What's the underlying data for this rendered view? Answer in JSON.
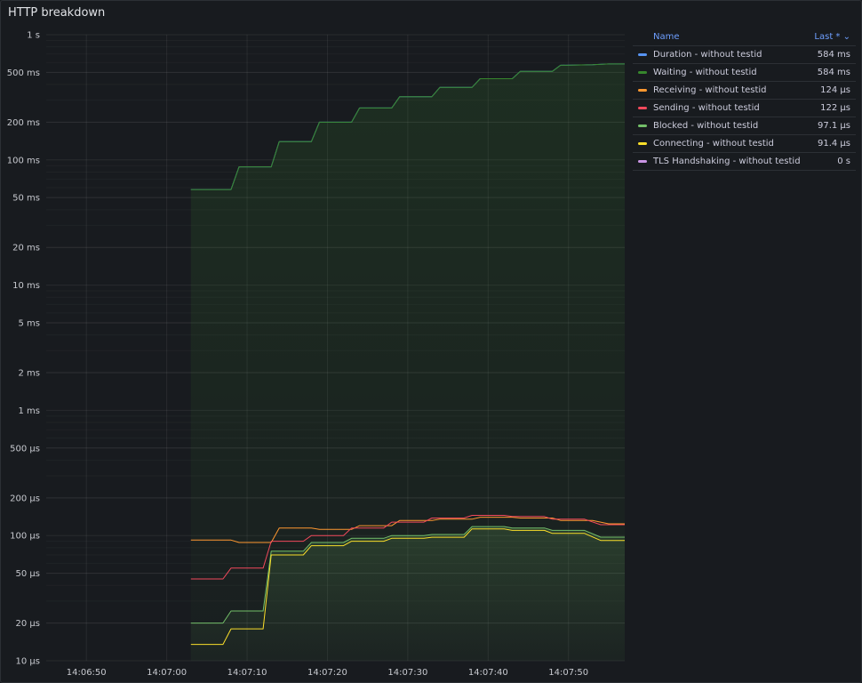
{
  "panel": {
    "title": "HTTP breakdown"
  },
  "legend": {
    "name_header": "Name",
    "value_header": "Last * ⌄",
    "items": [
      {
        "name": "Duration - without testid",
        "value": "584 ms",
        "color": "#5794f2"
      },
      {
        "name": "Waiting - without testid",
        "value": "584 ms",
        "color": "#37872d"
      },
      {
        "name": "Receiving - without testid",
        "value": "124 µs",
        "color": "#ff9830"
      },
      {
        "name": "Sending - without testid",
        "value": "122 µs",
        "color": "#f2495c"
      },
      {
        "name": "Blocked - without testid",
        "value": "97.1 µs",
        "color": "#73bf69"
      },
      {
        "name": "Connecting - without testid",
        "value": "91.4 µs",
        "color": "#fade2a"
      },
      {
        "name": "TLS Handshaking - without testid",
        "value": "0 s",
        "color": "#ca95e5"
      }
    ]
  },
  "chart_data": {
    "type": "line",
    "scale": "log",
    "xlabel": "",
    "ylabel": "",
    "x_range": [
      "14:06:45",
      "14:07:57"
    ],
    "y_range_seconds": [
      1e-05,
      1
    ],
    "x_ticks": [
      "14:06:50",
      "14:07:00",
      "14:07:10",
      "14:07:20",
      "14:07:30",
      "14:07:40",
      "14:07:50"
    ],
    "y_ticks": [
      {
        "label": "1 s",
        "value": 1
      },
      {
        "label": "500 ms",
        "value": 0.5
      },
      {
        "label": "200 ms",
        "value": 0.2
      },
      {
        "label": "100 ms",
        "value": 0.1
      },
      {
        "label": "50 ms",
        "value": 0.05
      },
      {
        "label": "20 ms",
        "value": 0.02
      },
      {
        "label": "10 ms",
        "value": 0.01
      },
      {
        "label": "5 ms",
        "value": 0.005
      },
      {
        "label": "2 ms",
        "value": 0.002
      },
      {
        "label": "1 ms",
        "value": 0.001
      },
      {
        "label": "500 µs",
        "value": 0.0005
      },
      {
        "label": "200 µs",
        "value": 0.0002
      },
      {
        "label": "100 µs",
        "value": 0.0001
      },
      {
        "label": "50 µs",
        "value": 5e-05
      },
      {
        "label": "20 µs",
        "value": 2e-05
      },
      {
        "label": "10 µs",
        "value": 1e-05
      }
    ],
    "series": [
      {
        "name": "Duration - without testid",
        "color": "#5794f2",
        "fill": false,
        "points": [
          [
            "14:07:03",
            0.058
          ],
          [
            "14:07:08",
            0.058
          ],
          [
            "14:07:09",
            0.088
          ],
          [
            "14:07:13",
            0.088
          ],
          [
            "14:07:14",
            0.14
          ],
          [
            "14:07:18",
            0.14
          ],
          [
            "14:07:19",
            0.2
          ],
          [
            "14:07:23",
            0.2
          ],
          [
            "14:07:24",
            0.26
          ],
          [
            "14:07:28",
            0.26
          ],
          [
            "14:07:29",
            0.32
          ],
          [
            "14:07:33",
            0.32
          ],
          [
            "14:07:34",
            0.38
          ],
          [
            "14:07:38",
            0.38
          ],
          [
            "14:07:39",
            0.445
          ],
          [
            "14:07:43",
            0.445
          ],
          [
            "14:07:44",
            0.51
          ],
          [
            "14:07:48",
            0.51
          ],
          [
            "14:07:49",
            0.57
          ],
          [
            "14:07:53",
            0.575
          ],
          [
            "14:07:55",
            0.584
          ],
          [
            "14:07:57",
            0.584
          ]
        ]
      },
      {
        "name": "Waiting - without testid",
        "color": "#37872d",
        "fill": true,
        "points": [
          [
            "14:07:03",
            0.058
          ],
          [
            "14:07:08",
            0.058
          ],
          [
            "14:07:09",
            0.088
          ],
          [
            "14:07:13",
            0.088
          ],
          [
            "14:07:14",
            0.14
          ],
          [
            "14:07:18",
            0.14
          ],
          [
            "14:07:19",
            0.2
          ],
          [
            "14:07:23",
            0.2
          ],
          [
            "14:07:24",
            0.26
          ],
          [
            "14:07:28",
            0.26
          ],
          [
            "14:07:29",
            0.32
          ],
          [
            "14:07:33",
            0.32
          ],
          [
            "14:07:34",
            0.38
          ],
          [
            "14:07:38",
            0.38
          ],
          [
            "14:07:39",
            0.445
          ],
          [
            "14:07:43",
            0.445
          ],
          [
            "14:07:44",
            0.51
          ],
          [
            "14:07:48",
            0.51
          ],
          [
            "14:07:49",
            0.57
          ],
          [
            "14:07:53",
            0.575
          ],
          [
            "14:07:55",
            0.584
          ],
          [
            "14:07:57",
            0.584
          ]
        ]
      },
      {
        "name": "Receiving - without testid",
        "color": "#ff9830",
        "fill": false,
        "points": [
          [
            "14:07:03",
            9.2e-05
          ],
          [
            "14:07:08",
            9.2e-05
          ],
          [
            "14:07:09",
            8.8e-05
          ],
          [
            "14:07:13",
            8.8e-05
          ],
          [
            "14:07:14",
            0.000115
          ],
          [
            "14:07:18",
            0.000115
          ],
          [
            "14:07:19",
            0.000112
          ],
          [
            "14:07:23",
            0.000112
          ],
          [
            "14:07:24",
            0.00012
          ],
          [
            "14:07:28",
            0.00012
          ],
          [
            "14:07:29",
            0.000132
          ],
          [
            "14:07:33",
            0.000132
          ],
          [
            "14:07:34",
            0.000135
          ],
          [
            "14:07:38",
            0.000135
          ],
          [
            "14:07:39",
            0.00014
          ],
          [
            "14:07:43",
            0.00014
          ],
          [
            "14:07:44",
            0.000138
          ],
          [
            "14:07:48",
            0.000138
          ],
          [
            "14:07:49",
            0.000132
          ],
          [
            "14:07:53",
            0.000132
          ],
          [
            "14:07:55",
            0.000124
          ],
          [
            "14:07:57",
            0.000124
          ]
        ]
      },
      {
        "name": "Sending - without testid",
        "color": "#f2495c",
        "fill": false,
        "points": [
          [
            "14:07:03",
            4.5e-05
          ],
          [
            "14:07:07",
            4.5e-05
          ],
          [
            "14:07:08",
            5.5e-05
          ],
          [
            "14:07:12",
            5.5e-05
          ],
          [
            "14:07:13",
            9e-05
          ],
          [
            "14:07:17",
            9e-05
          ],
          [
            "14:07:18",
            0.0001
          ],
          [
            "14:07:22",
            0.0001
          ],
          [
            "14:07:23",
            0.000115
          ],
          [
            "14:07:27",
            0.000115
          ],
          [
            "14:07:28",
            0.000128
          ],
          [
            "14:07:32",
            0.000128
          ],
          [
            "14:07:33",
            0.000138
          ],
          [
            "14:07:37",
            0.000138
          ],
          [
            "14:07:38",
            0.000145
          ],
          [
            "14:07:42",
            0.000145
          ],
          [
            "14:07:43",
            0.000142
          ],
          [
            "14:07:47",
            0.000142
          ],
          [
            "14:07:48",
            0.000135
          ],
          [
            "14:07:52",
            0.000135
          ],
          [
            "14:07:54",
            0.000122
          ],
          [
            "14:07:57",
            0.000122
          ]
        ]
      },
      {
        "name": "Blocked - without testid",
        "color": "#73bf69",
        "fill": true,
        "points": [
          [
            "14:07:03",
            2e-05
          ],
          [
            "14:07:07",
            2e-05
          ],
          [
            "14:07:08",
            2.5e-05
          ],
          [
            "14:07:12",
            2.5e-05
          ],
          [
            "14:07:13",
            7.5e-05
          ],
          [
            "14:07:17",
            7.5e-05
          ],
          [
            "14:07:18",
            8.8e-05
          ],
          [
            "14:07:22",
            8.8e-05
          ],
          [
            "14:07:23",
            9.5e-05
          ],
          [
            "14:07:27",
            9.5e-05
          ],
          [
            "14:07:28",
            0.0001
          ],
          [
            "14:07:32",
            0.0001
          ],
          [
            "14:07:33",
            0.000102
          ],
          [
            "14:07:37",
            0.000102
          ],
          [
            "14:07:38",
            0.000118
          ],
          [
            "14:07:42",
            0.000118
          ],
          [
            "14:07:43",
            0.000115
          ],
          [
            "14:07:47",
            0.000115
          ],
          [
            "14:07:48",
            0.00011
          ],
          [
            "14:07:52",
            0.00011
          ],
          [
            "14:07:54",
            9.71e-05
          ],
          [
            "14:07:57",
            9.71e-05
          ]
        ]
      },
      {
        "name": "Connecting - without testid",
        "color": "#fade2a",
        "fill": false,
        "points": [
          [
            "14:07:03",
            1.35e-05
          ],
          [
            "14:07:07",
            1.35e-05
          ],
          [
            "14:07:08",
            1.8e-05
          ],
          [
            "14:07:12",
            1.8e-05
          ],
          [
            "14:07:13",
            7e-05
          ],
          [
            "14:07:17",
            7e-05
          ],
          [
            "14:07:18",
            8.3e-05
          ],
          [
            "14:07:22",
            8.3e-05
          ],
          [
            "14:07:23",
            9e-05
          ],
          [
            "14:07:27",
            9e-05
          ],
          [
            "14:07:28",
            9.5e-05
          ],
          [
            "14:07:32",
            9.5e-05
          ],
          [
            "14:07:33",
            9.7e-05
          ],
          [
            "14:07:37",
            9.7e-05
          ],
          [
            "14:07:38",
            0.000113
          ],
          [
            "14:07:42",
            0.000113
          ],
          [
            "14:07:43",
            0.00011
          ],
          [
            "14:07:47",
            0.00011
          ],
          [
            "14:07:48",
            0.000104
          ],
          [
            "14:07:52",
            0.000104
          ],
          [
            "14:07:54",
            9.14e-05
          ],
          [
            "14:07:57",
            9.14e-05
          ]
        ]
      }
    ],
    "legend_placement": "right",
    "grid": true
  }
}
